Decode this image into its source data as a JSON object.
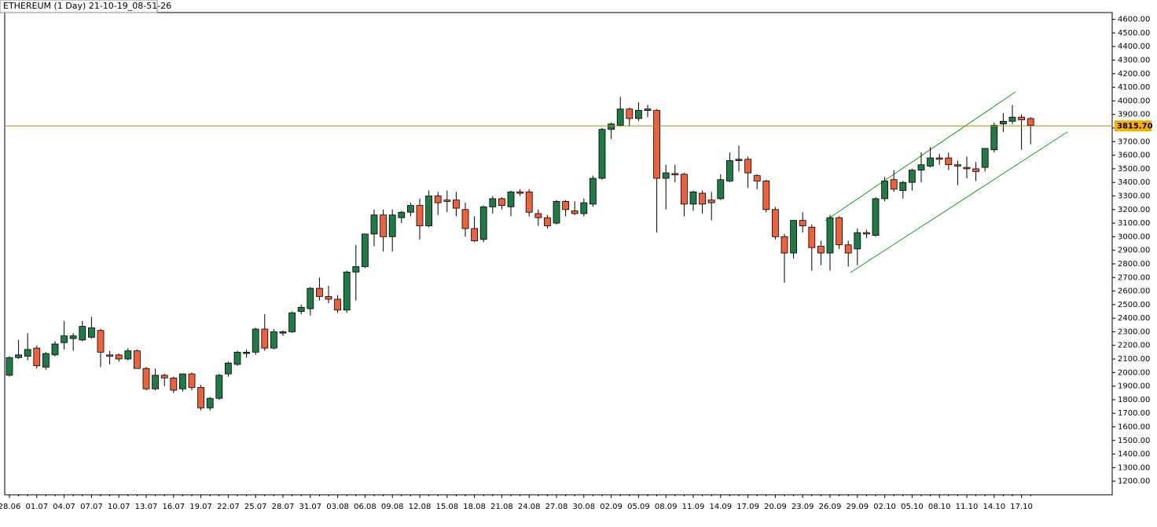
{
  "chart_data": {
    "type": "candlestick",
    "title": "ETHEREUM (1 Day) 21-10-19_08-51-26",
    "up_color": "#1e7b45",
    "down_color": "#f0603a",
    "categories": [
      "28.06",
      null,
      null,
      "01.07",
      null,
      null,
      "04.07",
      null,
      null,
      "07.07",
      null,
      null,
      "10.07",
      null,
      null,
      "13.07",
      null,
      null,
      "16.07",
      null,
      null,
      "19.07",
      null,
      null,
      "22.07",
      null,
      null,
      "25.07",
      null,
      null,
      "28.07",
      null,
      null,
      "31.07",
      null,
      null,
      "03.08",
      null,
      null,
      "06.08",
      null,
      null,
      "09.08",
      null,
      null,
      "12.08",
      null,
      null,
      "15.08",
      null,
      null,
      "18.08",
      null,
      null,
      "21.08",
      null,
      null,
      "24.08",
      null,
      null,
      "27.08",
      null,
      null,
      "30.08",
      null,
      null,
      "02.09",
      null,
      null,
      "05.09",
      null,
      null,
      "08.09",
      null,
      null,
      "11.09",
      null,
      null,
      "14.09",
      null,
      null,
      "17.09",
      null,
      null,
      "20.09",
      null,
      null,
      "23.09",
      null,
      null,
      "26.09",
      null,
      null,
      "29.09",
      null,
      null,
      "02.10",
      null,
      null,
      "05.10",
      null,
      null,
      "08.10",
      null,
      null,
      "11.10",
      null,
      null,
      "14.10",
      null,
      null,
      "17.10",
      null
    ],
    "open": [
      1980,
      2110,
      2120,
      2180,
      2040,
      2130,
      2220,
      2250,
      2240,
      2260,
      2310,
      2130,
      2130,
      2100,
      2160,
      2030,
      1880,
      1980,
      1960,
      1880,
      1990,
      1890,
      1740,
      1810,
      1990,
      2060,
      2140,
      2150,
      2320,
      2180,
      2290,
      2300,
      2450,
      2470,
      2620,
      2560,
      2540,
      2460,
      2740,
      2780,
      3020,
      3160,
      3000,
      3140,
      3180,
      3230,
      3080,
      3300,
      3270,
      3270,
      3200,
      3060,
      2980,
      3220,
      3280,
      3220,
      3330,
      3330,
      3170,
      3140,
      3100,
      3260,
      3190,
      3170,
      3240,
      3430,
      3790,
      3820,
      3940,
      3870,
      3930,
      3930,
      3430,
      3465,
      3460,
      3240,
      3320,
      3270,
      3280,
      3410,
      3560,
      3570,
      3450,
      3410,
      3200,
      3000,
      2880,
      3120,
      3070,
      2930,
      2880,
      3140,
      2940,
      2910,
      3030,
      3010,
      3280,
      3420,
      3340,
      3400,
      3490,
      3520,
      3580,
      3580,
      3530,
      3510,
      3500,
      3510,
      3640,
      3830,
      3850,
      3880,
      3870
    ],
    "high": [
      2120,
      2240,
      2290,
      2200,
      2150,
      2230,
      2380,
      2290,
      2380,
      2410,
      2320,
      2160,
      2140,
      2180,
      2170,
      2040,
      2030,
      1990,
      1970,
      1990,
      2000,
      1910,
      1820,
      1990,
      2080,
      2160,
      2170,
      2330,
      2430,
      2320,
      2310,
      2450,
      2500,
      2630,
      2700,
      2640,
      2570,
      2750,
      2940,
      3020,
      3200,
      3200,
      3200,
      3190,
      3250,
      3280,
      3340,
      3330,
      3340,
      3330,
      3250,
      3150,
      3230,
      3300,
      3290,
      3340,
      3350,
      3350,
      3200,
      3160,
      3270,
      3270,
      3260,
      3280,
      3450,
      3800,
      3840,
      4030,
      3950,
      3990,
      3970,
      3940,
      3530,
      3530,
      3470,
      3340,
      3340,
      3330,
      3460,
      3620,
      3670,
      3590,
      3460,
      3420,
      3220,
      3020,
      3120,
      3180,
      3090,
      2970,
      3160,
      3150,
      2970,
      3060,
      3050,
      3290,
      3440,
      3490,
      3410,
      3500,
      3620,
      3660,
      3610,
      3620,
      3560,
      3590,
      3550,
      3650,
      3840,
      3910,
      3970,
      3900,
      3880
    ],
    "low": [
      1970,
      2100,
      2090,
      2030,
      2020,
      2120,
      2170,
      2160,
      2230,
      2250,
      2040,
      2060,
      2080,
      2090,
      2030,
      1870,
      1870,
      1900,
      1850,
      1860,
      1870,
      1720,
      1720,
      1800,
      1970,
      2050,
      2110,
      2130,
      2160,
      2170,
      2270,
      2290,
      2430,
      2420,
      2530,
      2510,
      2440,
      2440,
      2530,
      2770,
      2930,
      2890,
      2890,
      3100,
      3150,
      2980,
      3070,
      3160,
      3180,
      3150,
      3000,
      2960,
      2960,
      3170,
      3200,
      3150,
      3300,
      3150,
      3080,
      3060,
      3090,
      3150,
      3160,
      3150,
      3220,
      3420,
      3720,
      3810,
      3810,
      3850,
      3880,
      3030,
      3200,
      3400,
      3150,
      3190,
      3170,
      3120,
      3270,
      3400,
      3480,
      3360,
      3350,
      3180,
      2980,
      2660,
      2840,
      3030,
      2750,
      2790,
      2750,
      2910,
      2780,
      2790,
      2990,
      3000,
      3260,
      3330,
      3280,
      3340,
      3400,
      3510,
      3530,
      3490,
      3380,
      3430,
      3410,
      3480,
      3620,
      3770,
      3830,
      3640,
      3680
    ],
    "close": [
      2110,
      2130,
      2170,
      2050,
      2140,
      2210,
      2270,
      2270,
      2340,
      2330,
      2150,
      2120,
      2100,
      2160,
      2030,
      1880,
      1980,
      1960,
      1870,
      1990,
      1890,
      1740,
      1810,
      1980,
      2070,
      2150,
      2150,
      2320,
      2180,
      2300,
      2300,
      2440,
      2480,
      2620,
      2560,
      2540,
      2460,
      2740,
      2780,
      3020,
      3160,
      3000,
      3160,
      3180,
      3230,
      3080,
      3300,
      3250,
      3260,
      3210,
      3060,
      2970,
      3220,
      3280,
      3230,
      3330,
      3320,
      3180,
      3140,
      3080,
      3260,
      3200,
      3170,
      3250,
      3430,
      3790,
      3830,
      3940,
      3870,
      3930,
      3940,
      3430,
      3470,
      3455,
      3240,
      3330,
      3240,
      3250,
      3420,
      3560,
      3570,
      3470,
      3410,
      3200,
      3000,
      2880,
      3120,
      3080,
      2920,
      2880,
      3140,
      2940,
      2880,
      3030,
      3020,
      3280,
      3410,
      3350,
      3400,
      3490,
      3530,
      3580,
      3570,
      3530,
      3520,
      3500,
      3480,
      3650,
      3820,
      3850,
      3880,
      3860,
      3820
    ],
    "last_price": {
      "value": 3815.7,
      "label": "3815.70"
    },
    "ylim": [
      1100,
      4650
    ],
    "yticks": [
      {
        "value": 1200,
        "label": "1200.00"
      },
      {
        "value": 1300,
        "label": "1300.00"
      },
      {
        "value": 1400,
        "label": "1400.00"
      },
      {
        "value": 1500,
        "label": "1500.00"
      },
      {
        "value": 1600,
        "label": "1600.00"
      },
      {
        "value": 1700,
        "label": "1700.00"
      },
      {
        "value": 1800,
        "label": "1800.00"
      },
      {
        "value": 1900,
        "label": "1900.00"
      },
      {
        "value": 2000,
        "label": "2000.00"
      },
      {
        "value": 2100,
        "label": "2100.00"
      },
      {
        "value": 2200,
        "label": "2200.00"
      },
      {
        "value": 2300,
        "label": "2300.00"
      },
      {
        "value": 2400,
        "label": "2400.00"
      },
      {
        "value": 2500,
        "label": "2500.00"
      },
      {
        "value": 2600,
        "label": "2600.00"
      },
      {
        "value": 2700,
        "label": "2700.00"
      },
      {
        "value": 2800,
        "label": "2800.00"
      },
      {
        "value": 2900,
        "label": "2900.00"
      },
      {
        "value": 3000,
        "label": "3000.00"
      },
      {
        "value": 3100,
        "label": "3100.00"
      },
      {
        "value": 3200,
        "label": "3200.00"
      },
      {
        "value": 3300,
        "label": "3300.00"
      },
      {
        "value": 3400,
        "label": "3400.00"
      },
      {
        "value": 3500,
        "label": "3500.00"
      },
      {
        "value": 3600,
        "label": "3600.00"
      },
      {
        "value": 3700,
        "label": "3700.00"
      },
      {
        "value": 3800,
        "label": "3800.00"
      },
      {
        "value": 3900,
        "label": "3900.00"
      },
      {
        "value": 4000,
        "label": "4000.00"
      },
      {
        "value": 4100,
        "label": "4100.00"
      },
      {
        "value": 4200,
        "label": "4200.00"
      },
      {
        "value": 4300,
        "label": "4300.00"
      },
      {
        "value": 4400,
        "label": "4400.00"
      },
      {
        "value": 4500,
        "label": "4500.00"
      },
      {
        "value": 4600,
        "label": "4600.00"
      }
    ]
  }
}
